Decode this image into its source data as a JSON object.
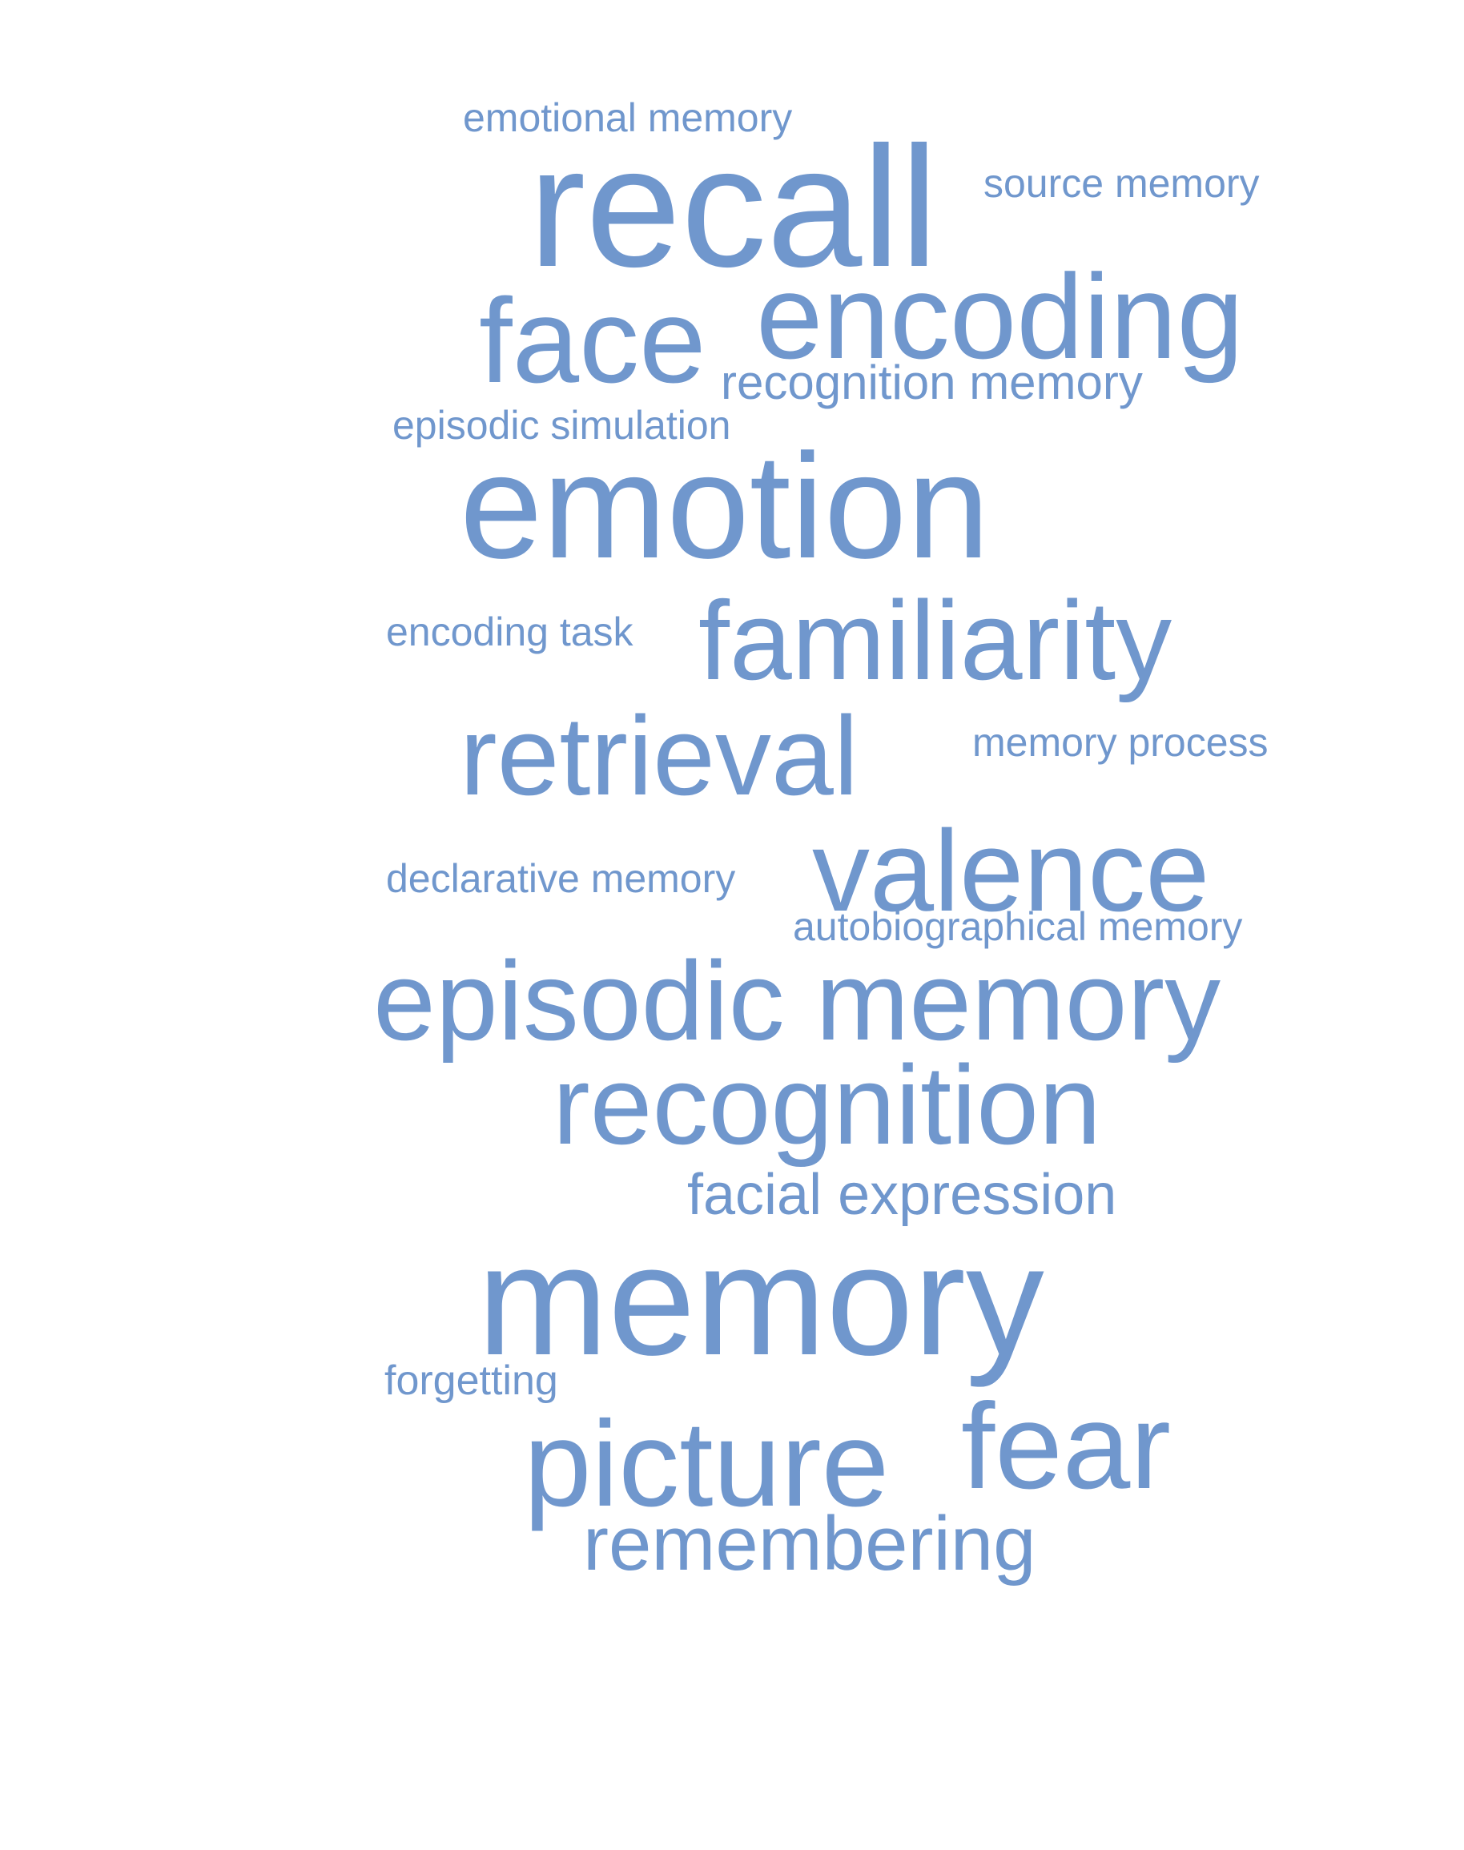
{
  "theme": {
    "word_color": "#7097cd",
    "background": "#ffffff"
  },
  "words": [
    {
      "id": "w1",
      "text": "emotional memory"
    },
    {
      "id": "w2",
      "text": "recall"
    },
    {
      "id": "w3",
      "text": "source memory"
    },
    {
      "id": "w4",
      "text": "face"
    },
    {
      "id": "w5",
      "text": "encoding"
    },
    {
      "id": "w6",
      "text": "recognition memory"
    },
    {
      "id": "w7",
      "text": "episodic simulation"
    },
    {
      "id": "w8",
      "text": "emotion"
    },
    {
      "id": "w9",
      "text": "encoding task"
    },
    {
      "id": "w10",
      "text": "familiarity"
    },
    {
      "id": "w11",
      "text": "retrieval"
    },
    {
      "id": "w12",
      "text": "memory process"
    },
    {
      "id": "w13",
      "text": "declarative memory"
    },
    {
      "id": "w14",
      "text": "valence"
    },
    {
      "id": "w15",
      "text": "autobiographical memory"
    },
    {
      "id": "w16",
      "text": "episodic memory"
    },
    {
      "id": "w17",
      "text": "recognition"
    },
    {
      "id": "w18",
      "text": "facial expression"
    },
    {
      "id": "w19",
      "text": "memory"
    },
    {
      "id": "w20",
      "text": "forgetting"
    },
    {
      "id": "w21",
      "text": "picture"
    },
    {
      "id": "w22",
      "text": "fear"
    },
    {
      "id": "w23",
      "text": "remembering"
    }
  ]
}
